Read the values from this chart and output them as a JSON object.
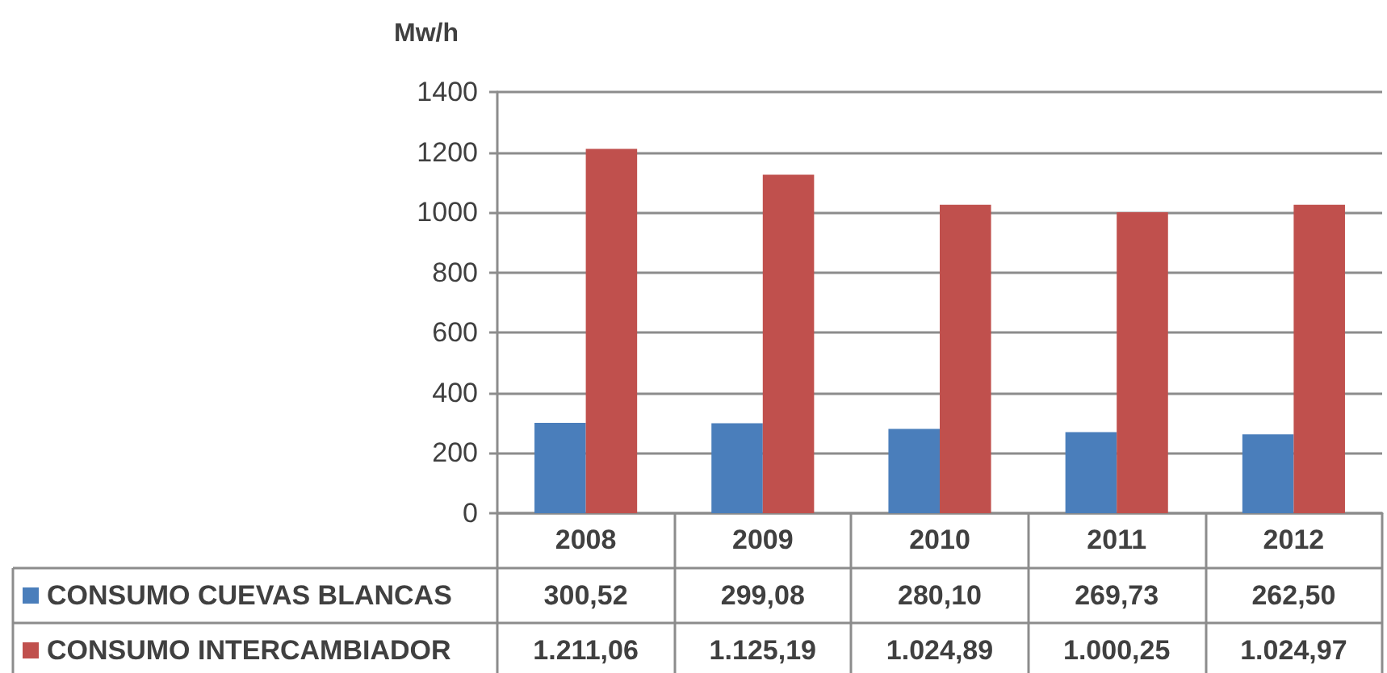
{
  "chart_data": {
    "type": "bar",
    "ylabel": "Mw/h",
    "categories": [
      "2008",
      "2009",
      "2010",
      "2011",
      "2012"
    ],
    "series": [
      {
        "name": "CONSUMO CUEVAS BLANCAS",
        "color": "#4a7ebb",
        "values": [
          300.52,
          299.08,
          280.1,
          269.73,
          262.5
        ],
        "value_labels": [
          "300,52",
          "299,08",
          "280,10",
          "269,73",
          "262,50"
        ]
      },
      {
        "name": "CONSUMO INTERCAMBIADOR",
        "color": "#c0504d",
        "values": [
          1211.06,
          1125.19,
          1024.89,
          1000.25,
          1024.97
        ],
        "value_labels": [
          "1.211,06",
          "1.125,19",
          "1.024,89",
          "1.000,25",
          "1.024,97"
        ]
      }
    ],
    "ylim": [
      0,
      1400
    ],
    "yticks": [
      0,
      200,
      400,
      600,
      800,
      1000,
      1200,
      1400
    ],
    "grid": "y",
    "legend": "bottom left"
  }
}
